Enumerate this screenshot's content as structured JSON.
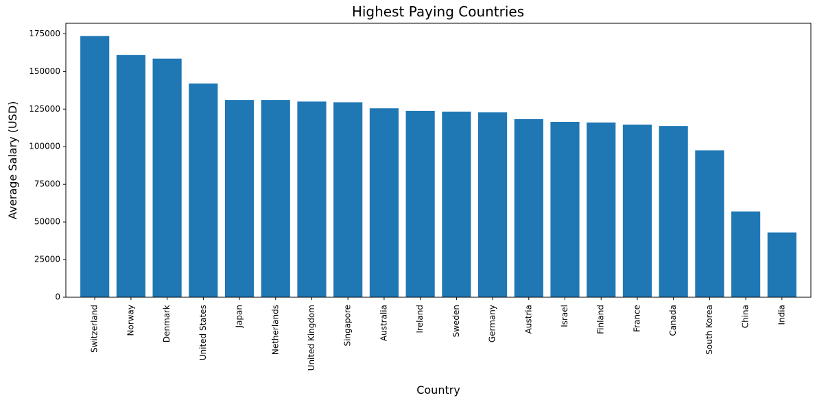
{
  "chart_data": {
    "type": "bar",
    "title": "Highest Paying Countries",
    "xlabel": "Country",
    "ylabel": "Average Salary (USD)",
    "ylim": [
      0,
      182000
    ],
    "yticks": [
      0,
      25000,
      50000,
      75000,
      100000,
      125000,
      150000,
      175000
    ],
    "grid": false,
    "bar_color": "#1f77b4",
    "categories": [
      "Switzerland",
      "Norway",
      "Denmark",
      "United States",
      "Japan",
      "Netherlands",
      "United Kingdom",
      "Singapore",
      "Australia",
      "Ireland",
      "Sweden",
      "Germany",
      "Austria",
      "Israel",
      "Finland",
      "France",
      "Canada",
      "South Korea",
      "China",
      "India"
    ],
    "values": [
      173500,
      161000,
      158500,
      142000,
      131000,
      131000,
      130000,
      129500,
      125500,
      123800,
      123300,
      122800,
      118300,
      116500,
      116100,
      114700,
      113700,
      97600,
      57000,
      43000
    ]
  }
}
